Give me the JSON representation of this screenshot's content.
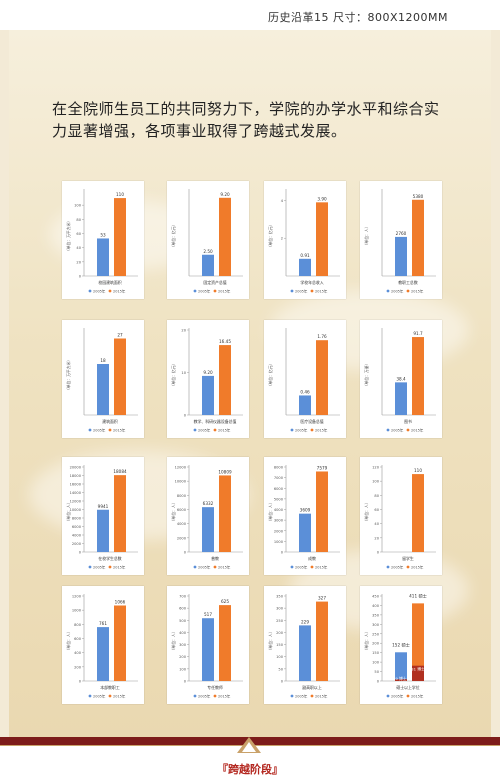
{
  "header": {
    "title": "历史沿革15  尺寸：800X1200MM"
  },
  "intro": {
    "text": "在全院师生员工的共同努力下，学院的办学水平和综合实力显著增强，各项事业取得了跨越式发展。"
  },
  "footer": {
    "label": "『跨越阶段』"
  },
  "colors": {
    "series_2005": "#5b8fd8",
    "series_2015": "#f07b2a",
    "accent_dark": "#7d1c1a",
    "highlight_dark": "#b03020"
  },
  "chart_data": [
    {
      "type": "bar",
      "title": "校园建筑面积",
      "ylabel": "（单位：万平方米）",
      "categories": [
        "2005年",
        "2015年"
      ],
      "values": [
        53,
        110
      ],
      "value_labels": [
        "53",
        "110"
      ],
      "ylim": [
        0,
        120
      ],
      "yticks": [
        0,
        20,
        40,
        60,
        80,
        100
      ],
      "legend": [
        "2005年",
        "2015年"
      ]
    },
    {
      "type": "bar",
      "title": "固定资产总值",
      "ylabel": "（单位：亿元）",
      "categories": [
        "2005年",
        "2015年"
      ],
      "values": [
        2.5,
        9.2
      ],
      "value_labels": [
        "2.50",
        "9.20"
      ],
      "ylim": [
        0,
        10
      ],
      "yticks": [],
      "legend": [
        "2005年",
        "2015年"
      ]
    },
    {
      "type": "bar",
      "title": "学校年总收入",
      "ylabel": "（单位：亿元）",
      "categories": [
        "2005年",
        "2015年"
      ],
      "values": [
        0.91,
        3.9
      ],
      "value_labels": [
        "0.91",
        "3.90"
      ],
      "ylim": [
        0,
        4.5
      ],
      "yticks": [
        2,
        4
      ],
      "legend": [
        "2005年",
        "2015年"
      ]
    },
    {
      "type": "bar",
      "title": "教职工总数",
      "ylabel": "（单位：人）",
      "categories": [
        "2005年",
        "2015年"
      ],
      "values": [
        2760,
        5380
      ],
      "value_labels": [
        "2760",
        "5380"
      ],
      "ylim": [
        0,
        6000
      ],
      "yticks": [],
      "legend": [
        "2005年",
        "2015年"
      ]
    },
    {
      "type": "bar",
      "title": "建筑面积",
      "ylabel": "（单位：万平方米）",
      "categories": [
        "2005年",
        "2015年"
      ],
      "values": [
        18,
        27
      ],
      "value_labels": [
        "18",
        "27"
      ],
      "ylim": [
        0,
        30
      ],
      "yticks": [],
      "legend": [
        "2005年",
        "2015年"
      ]
    },
    {
      "type": "bar",
      "title": "教学、科研仪器设备总值",
      "ylabel": "（单位：亿元）",
      "categories": [
        "2005年",
        "2015年"
      ],
      "values": [
        9.2,
        16.45
      ],
      "value_labels": [
        "9.20",
        "16.45"
      ],
      "ylim": [
        0,
        20
      ],
      "yticks": [
        0,
        10,
        20
      ],
      "legend": [
        "2005年",
        "2015年"
      ]
    },
    {
      "type": "bar",
      "title": "医疗设备总值",
      "ylabel": "（单位：亿元）",
      "categories": [
        "2005年",
        "2015年"
      ],
      "values": [
        0.46,
        1.76
      ],
      "value_labels": [
        "0.46",
        "1.76"
      ],
      "ylim": [
        0,
        2
      ],
      "yticks": [],
      "legend": [
        "2005年",
        "2015年"
      ]
    },
    {
      "type": "bar",
      "title": "图书",
      "ylabel": "（单位：万册）",
      "categories": [
        "2005年",
        "2015年"
      ],
      "values": [
        38.4,
        91.7
      ],
      "value_labels": [
        "38.4",
        "91.7"
      ],
      "ylim": [
        0,
        100
      ],
      "yticks": [],
      "legend": [
        "2005年",
        "2015年"
      ]
    },
    {
      "type": "bar",
      "title": "在校学生总数",
      "ylabel": "（单位：人）",
      "categories": [
        "2005年",
        "2015年"
      ],
      "values": [
        9941,
        18084
      ],
      "value_labels": [
        "9941",
        "18084"
      ],
      "ylim": [
        0,
        20000
      ],
      "yticks": [
        0,
        2000,
        4000,
        6000,
        8000,
        10000,
        12000,
        14000,
        16000,
        18000,
        20000
      ],
      "legend": [
        "2005年",
        "2015年"
      ]
    },
    {
      "type": "bar",
      "title": "普教",
      "ylabel": "（单位：人）",
      "categories": [
        "2005年",
        "2015年"
      ],
      "values": [
        6332,
        10809
      ],
      "value_labels": [
        "6332",
        "10809"
      ],
      "ylim": [
        0,
        12000
      ],
      "yticks": [
        0,
        2000,
        4000,
        6000,
        8000,
        10000,
        12000
      ],
      "legend": [
        "2005年",
        "2015年"
      ]
    },
    {
      "type": "bar",
      "title": "成教",
      "ylabel": "（单位：人）",
      "categories": [
        "2005年",
        "2015年"
      ],
      "values": [
        3609,
        7579
      ],
      "value_labels": [
        "3609",
        "7579"
      ],
      "ylim": [
        0,
        8000
      ],
      "yticks": [
        0,
        1000,
        2000,
        3000,
        4000,
        5000,
        6000,
        7000,
        8000
      ],
      "legend": [
        "2005年",
        "2015年"
      ]
    },
    {
      "type": "bar",
      "title": "留学生",
      "ylabel": "（单位：人）",
      "categories": [
        "2005年",
        "2015年"
      ],
      "values": [
        0,
        110
      ],
      "value_labels": [
        "",
        "110"
      ],
      "ylim": [
        0,
        120
      ],
      "yticks": [
        0,
        20,
        40,
        60,
        80,
        100,
        120
      ],
      "legend": [
        "2005年",
        "2015年"
      ]
    },
    {
      "type": "bar",
      "title": "本部教职工",
      "ylabel": "（单位：人）",
      "categories": [
        "2005年",
        "2015年"
      ],
      "values": [
        761,
        1066
      ],
      "value_labels": [
        "761",
        "1066"
      ],
      "ylim": [
        0,
        1200
      ],
      "yticks": [
        0,
        200,
        400,
        600,
        800,
        1000,
        1200
      ],
      "legend": [
        "2005年",
        "2015年"
      ]
    },
    {
      "type": "bar",
      "title": "专任教师",
      "ylabel": "（单位：人）",
      "categories": [
        "2005年",
        "2015年"
      ],
      "values": [
        517,
        625
      ],
      "value_labels": [
        "517",
        "625"
      ],
      "ylim": [
        0,
        700
      ],
      "yticks": [
        0,
        100,
        200,
        300,
        400,
        500,
        600,
        700
      ],
      "legend": [
        "2005年",
        "2015年"
      ]
    },
    {
      "type": "bar",
      "title": "副高职以上",
      "ylabel": "（单位：人）",
      "categories": [
        "2005年",
        "2015年"
      ],
      "values": [
        229,
        327
      ],
      "value_labels": [
        "229",
        "327"
      ],
      "ylim": [
        0,
        350
      ],
      "yticks": [
        0,
        50,
        100,
        150,
        200,
        250,
        300,
        350
      ],
      "legend": [
        "2005年",
        "2015年"
      ]
    },
    {
      "type": "stacked-bar",
      "title": "硕士以上学位",
      "ylabel": "（单位：人）",
      "categories": [
        "2005年",
        "2015年"
      ],
      "values": [
        152,
        411
      ],
      "value_labels": [
        "152\n硕士",
        "411\n硕士"
      ],
      "sub_values": [
        9,
        81
      ],
      "sub_labels": [
        "9\n博士",
        "81\n博士"
      ],
      "ylim": [
        0,
        450
      ],
      "yticks": [
        0,
        50,
        100,
        150,
        200,
        250,
        300,
        350,
        400,
        450
      ],
      "legend": [
        "2005年",
        "2015年"
      ]
    }
  ]
}
